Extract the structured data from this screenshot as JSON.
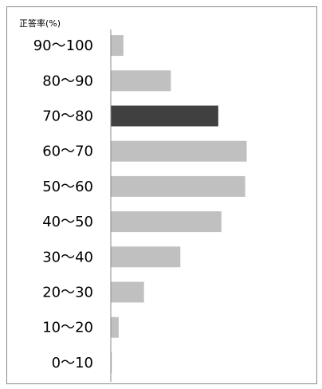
{
  "chart_data": {
    "type": "bar",
    "orientation": "horizontal",
    "ylabel": "正答率(%)",
    "categories": [
      "90〜100",
      "80〜90",
      "70〜80",
      "60〜70",
      "50〜60",
      "40〜50",
      "30〜40",
      "20〜30",
      "10〜20",
      "0〜10"
    ],
    "values": [
      4,
      19,
      34,
      43,
      42.5,
      35,
      22,
      10.5,
      2.5,
      0.3
    ],
    "xlim": [
      0,
      60
    ],
    "highlight_category": "70〜80",
    "grid": false,
    "colors": {
      "bar": "#c0c0c0",
      "highlight": "#404040",
      "axis": "#888888"
    }
  }
}
